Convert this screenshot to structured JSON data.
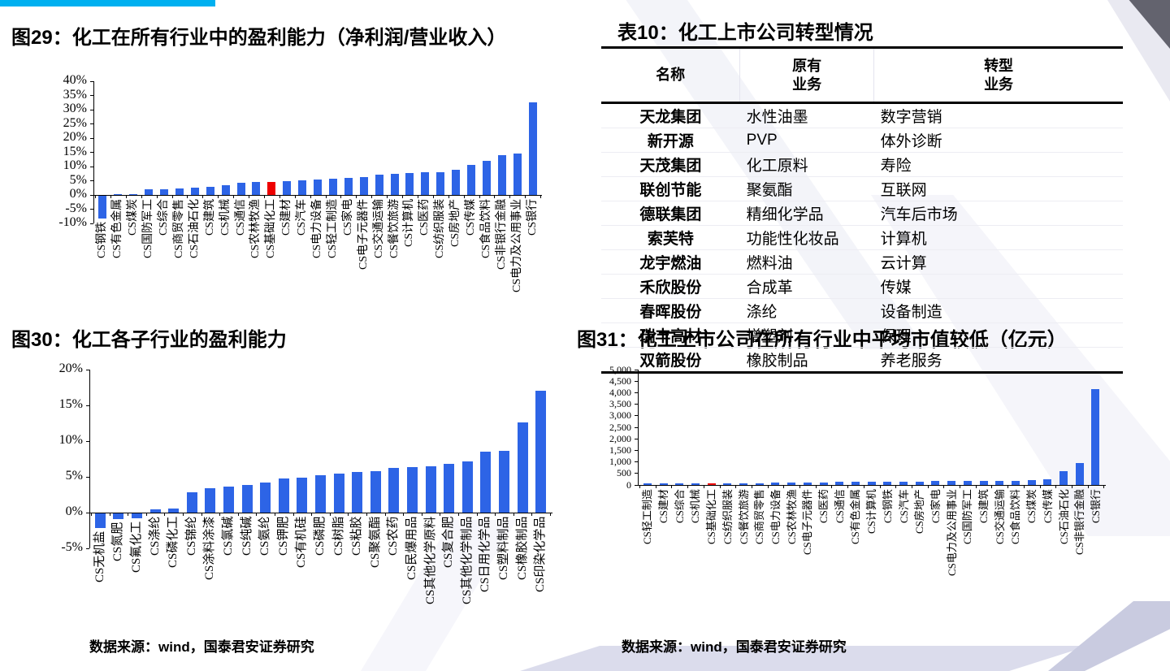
{
  "colors": {
    "accent_bar": "#00b0f0",
    "bar_blue": "#2d64e6",
    "bar_red": "#ee0000"
  },
  "figure29": {
    "title": "图29：化工在所有行业中的盈利能力（净利润/营业收入）"
  },
  "table10": {
    "title": "表10：化工上市公司转型情况",
    "columns": [
      "名称",
      "原有\n业务",
      "转型\n业务"
    ],
    "rows": [
      [
        "天龙集团",
        "水性油墨",
        "数字营销"
      ],
      [
        "新开源",
        "PVP",
        "体外诊断"
      ],
      [
        "天茂集团",
        "化工原料",
        "寿险"
      ],
      [
        "联创节能",
        "聚氨酯",
        "互联网"
      ],
      [
        "德联集团",
        "精细化学品",
        "汽车后市场"
      ],
      [
        "索芙特",
        "功能性化妆品",
        "计算机"
      ],
      [
        "龙宇燃油",
        "燃料油",
        "云计算"
      ],
      [
        "禾欣股份",
        "合成革",
        "传媒"
      ],
      [
        "春晖股份",
        "涤纶",
        "设备制造"
      ],
      [
        "瑞丰高材",
        "增塑剂",
        "保理"
      ],
      [
        "双箭股份",
        "橡胶制品",
        "养老服务"
      ]
    ]
  },
  "figure30": {
    "title": "图30：化工各子行业的盈利能力",
    "source": "数据来源：wind，国泰君安证券研究"
  },
  "figure31": {
    "title": "图31：化工上市公司在所有行业中平均市值较低（亿元）",
    "source": "数据来源：wind，国泰君安证券研究"
  },
  "chart_data": [
    {
      "id": "fig29",
      "type": "bar",
      "title": "化工在所有行业中的盈利能力（净利润/营业收入）",
      "xlabel": "",
      "ylabel": "",
      "ylim": [
        -10,
        40
      ],
      "ystep": 5,
      "grid": false,
      "legend": "none",
      "yticks": [
        "40%",
        "35%",
        "30%",
        "25%",
        "20%",
        "15%",
        "10%",
        "5%",
        "0%",
        "-5%",
        "-10%"
      ],
      "categories": [
        "CS钢铁",
        "CS有色金属",
        "CS煤炭",
        "CS国防军工",
        "CS综合",
        "CS商贸零售",
        "CS石油石化",
        "CS建筑",
        "CS机械",
        "CS通信",
        "CS农林牧渔",
        "CS基础化工",
        "CS建材",
        "CS汽车",
        "CS电力设备",
        "CS轻工制造",
        "CS家电",
        "CS电子元器件",
        "CS交通运输",
        "CS餐饮旅游",
        "CS计算机",
        "CS医药",
        "CS纺织服装",
        "CS房地产",
        "CS传媒",
        "CS食品饮料",
        "CS非银行金融",
        "CS电力及公用事业",
        "CS银行"
      ],
      "values": [
        -8,
        0.2,
        0.3,
        1.9,
        2.1,
        2.3,
        2.5,
        3.0,
        3.5,
        4.3,
        4.5,
        4.7,
        5.0,
        5.2,
        5.5,
        5.8,
        6.0,
        6.3,
        7.2,
        7.4,
        7.7,
        7.9,
        8.1,
        9.0,
        10.5,
        12.1,
        14.0,
        14.5,
        32.5
      ],
      "highlight_index": 11,
      "highlight_category": "CS基础化工"
    },
    {
      "id": "fig30",
      "type": "bar",
      "title": "化工各子行业的盈利能力",
      "xlabel": "",
      "ylabel": "",
      "ylim": [
        -5,
        20
      ],
      "ystep": 5,
      "grid": false,
      "legend": "none",
      "yticks": [
        "20%",
        "15%",
        "10%",
        "5%",
        "0%",
        "-5%"
      ],
      "categories": [
        "CS无机盐",
        "CS氮肥",
        "CS氟化工",
        "CS涤纶",
        "CS磷化工",
        "CS锦纶",
        "CS涂料涂漆",
        "CS氯碱",
        "CS纯碱",
        "CS氨纶",
        "CS钾肥",
        "CS有机硅",
        "CS磷肥",
        "CS树脂",
        "CS粘胶",
        "CS聚氨酯",
        "CS农药",
        "CS民爆用品",
        "CS其他化学原料",
        "CS复合肥",
        "CS其他化学制品",
        "CS日用化学品",
        "CS塑料制品",
        "CS橡胶制品",
        "CS印染化学品"
      ],
      "values": [
        -2.0,
        -0.8,
        -0.7,
        0.5,
        0.6,
        2.8,
        3.4,
        3.6,
        3.9,
        4.2,
        4.8,
        4.9,
        5.2,
        5.5,
        5.7,
        5.8,
        6.2,
        6.4,
        6.5,
        6.8,
        7.2,
        8.5,
        8.6,
        12.6,
        17.0
      ],
      "highlight_index": null
    },
    {
      "id": "fig31",
      "type": "bar",
      "title": "化工上市公司在所有行业中平均市值较低（亿元）",
      "xlabel": "",
      "ylabel": "亿元",
      "ylim": [
        0,
        5000
      ],
      "ystep": 500,
      "grid": false,
      "legend": "none",
      "yticks": [
        "5,000",
        "4,500",
        "4,000",
        "3,500",
        "3,000",
        "2,500",
        "2,000",
        "1,500",
        "1,000",
        "500",
        "0"
      ],
      "categories": [
        "CS轻工制造",
        "CS建材",
        "CS综合",
        "CS机械",
        "CS基础化工",
        "CS纺织服装",
        "CS餐饮旅游",
        "CS商贸零售",
        "CS电力设备",
        "CS农林牧渔",
        "CS电子元器件",
        "CS医药",
        "CS通信",
        "CS有色金属",
        "CS计算机",
        "CS钢铁",
        "CS汽车",
        "CS房地产",
        "CS家电",
        "CS电力及公用事业",
        "CS国防军工",
        "CS建筑",
        "CS交通运输",
        "CS食品饮料",
        "CS煤炭",
        "CS传媒",
        "CS石油石化",
        "CS非银行金融",
        "CS银行"
      ],
      "values": [
        55,
        60,
        65,
        70,
        70,
        72,
        75,
        80,
        90,
        95,
        105,
        115,
        125,
        135,
        140,
        145,
        150,
        155,
        160,
        165,
        170,
        175,
        180,
        185,
        220,
        235,
        600,
        950,
        4150
      ],
      "highlight_index": 4,
      "highlight_category": "CS基础化工"
    }
  ]
}
